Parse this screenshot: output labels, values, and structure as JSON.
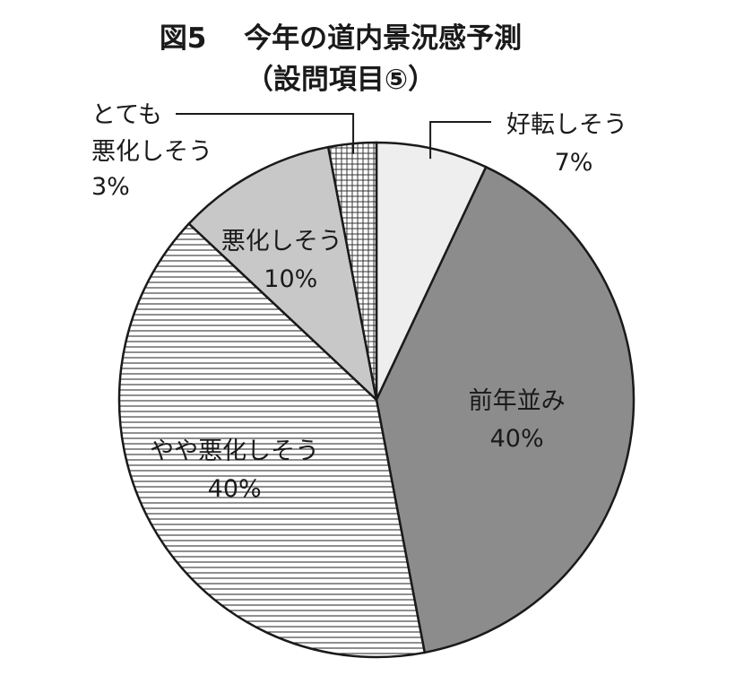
{
  "chart_data": {
    "type": "pie",
    "title_line1": "図5　 今年の道内景況感予測",
    "title_line2": "（設問項目⑤）",
    "slices": [
      {
        "label": "好転しそう",
        "value": 7,
        "display": "7%",
        "color": "#eeeeee",
        "pattern": "solid"
      },
      {
        "label": "前年並み",
        "value": 40,
        "display": "40%",
        "color": "#8c8c8c",
        "pattern": "solid"
      },
      {
        "label": "やや悪化しそう",
        "value": 40,
        "display": "40%",
        "color": "#ffffff",
        "pattern": "horizontal-lines"
      },
      {
        "label": "悪化しそう",
        "value": 10,
        "display": "10%",
        "color": "#c8c8c8",
        "pattern": "solid"
      },
      {
        "label": "とても悪化しそう",
        "label_lines": [
          "とても",
          "悪化しそう"
        ],
        "value": 3,
        "display": "3%",
        "color": "#ffffff",
        "pattern": "grid"
      }
    ]
  }
}
